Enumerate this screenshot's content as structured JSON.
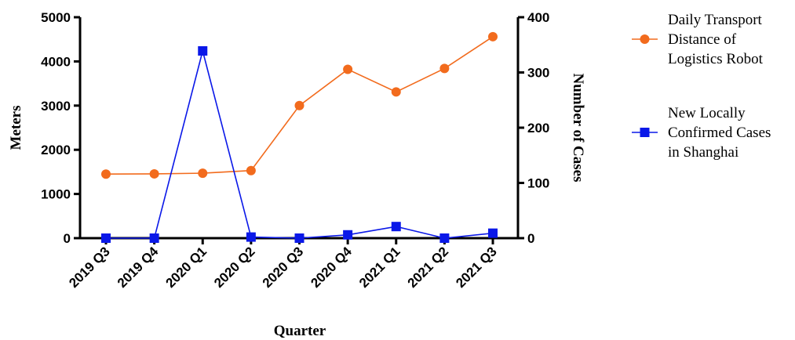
{
  "chart_data": {
    "type": "line",
    "categories": [
      "2019 Q3",
      "2019 Q4",
      "2020 Q1",
      "2020 Q2",
      "2020 Q3",
      "2020 Q4",
      "2021 Q1",
      "2021 Q2",
      "2021 Q3"
    ],
    "series": [
      {
        "name": "Daily Transport Distance of Logistics Robot",
        "legend_lines": [
          "Daily Transport",
          "Distance of",
          "Logistics Robot"
        ],
        "axis": "left",
        "color": "#F26B1D",
        "marker": "circle",
        "values": [
          1450,
          1455,
          1470,
          1530,
          3000,
          3820,
          3310,
          3840,
          4560
        ]
      },
      {
        "name": "New Locally Confirmed Cases in Shanghai",
        "legend_lines": [
          "New Locally",
          "Confirmed Cases",
          "in Shanghai"
        ],
        "axis": "right",
        "color": "#0A18E8",
        "marker": "square",
        "values": [
          0,
          0,
          339,
          2,
          0,
          6,
          21,
          0,
          9
        ]
      }
    ],
    "title": "",
    "xlabel": "Quarter",
    "ylabel_left": "Meters",
    "ylabel_right": "Number of Cases",
    "ylim_left": [
      0,
      5000
    ],
    "ylim_right": [
      0,
      400
    ],
    "yticks_left": [
      0,
      1000,
      2000,
      3000,
      4000,
      5000
    ],
    "yticks_right": [
      0,
      100,
      200,
      300,
      400
    ],
    "grid": false,
    "legend_position": "right"
  }
}
